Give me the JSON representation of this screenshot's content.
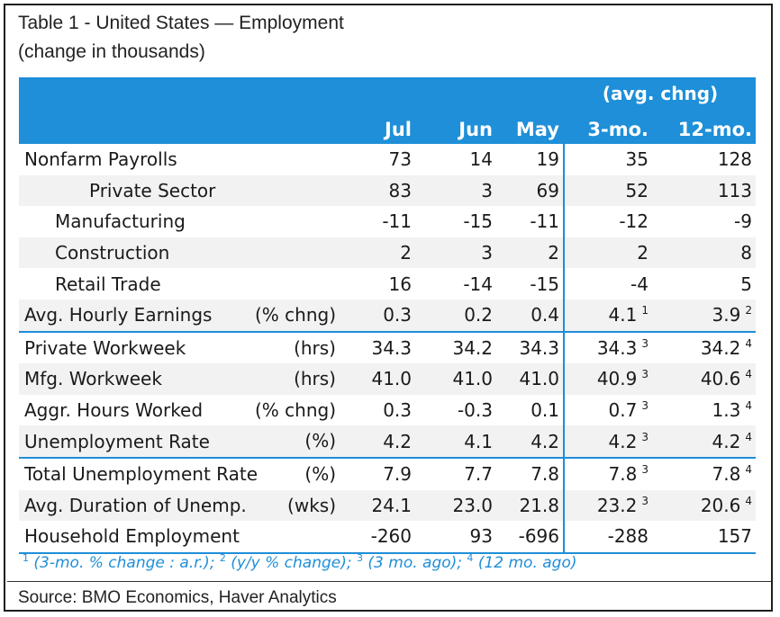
{
  "title": "Table 1 - United States — Employment",
  "subtitle": "(change in thousands)",
  "header": {
    "avg_label": "(avg. chng)",
    "columns": [
      "Jul",
      "Jun",
      "May",
      "3-mo.",
      "12-mo."
    ]
  },
  "rows": [
    {
      "label": "Nonfarm Payrolls",
      "unit": "",
      "values": [
        "73",
        "14",
        "19",
        "35",
        "128"
      ],
      "fn3": "",
      "fn12": ""
    },
    {
      "label": "Private Sector",
      "unit": "",
      "values": [
        "83",
        "3",
        "69",
        "52",
        "113"
      ],
      "fn3": "",
      "fn12": ""
    },
    {
      "label": "Manufacturing",
      "unit": "",
      "values": [
        "-11",
        "-15",
        "-11",
        "-12",
        "-9"
      ],
      "fn3": "",
      "fn12": ""
    },
    {
      "label": "Construction",
      "unit": "",
      "values": [
        "2",
        "3",
        "2",
        "2",
        "8"
      ],
      "fn3": "",
      "fn12": ""
    },
    {
      "label": "Retail Trade",
      "unit": "",
      "values": [
        "16",
        "-14",
        "-15",
        "-4",
        "5"
      ],
      "fn3": "",
      "fn12": ""
    },
    {
      "label": "Avg. Hourly Earnings",
      "unit": "(% chng)",
      "values": [
        "0.3",
        "0.2",
        "0.4",
        "4.1",
        "3.9"
      ],
      "fn3": "1",
      "fn12": "2"
    },
    {
      "label": "Private Workweek",
      "unit": "(hrs)",
      "values": [
        "34.3",
        "34.2",
        "34.3",
        "34.3",
        "34.2"
      ],
      "fn3": "3",
      "fn12": "4"
    },
    {
      "label": "Mfg. Workweek",
      "unit": "(hrs)",
      "values": [
        "41.0",
        "41.0",
        "41.0",
        "40.9",
        "40.6"
      ],
      "fn3": "3",
      "fn12": "4"
    },
    {
      "label": "Aggr. Hours Worked",
      "unit": "(% chng)",
      "values": [
        "0.3",
        "-0.3",
        "0.1",
        "0.7",
        "1.3"
      ],
      "fn3": "3",
      "fn12": "4"
    },
    {
      "label": "Unemployment Rate",
      "unit": "(%)",
      "values": [
        "4.2",
        "4.1",
        "4.2",
        "4.2",
        "4.2"
      ],
      "fn3": "3",
      "fn12": "4"
    },
    {
      "label": "Total Unemployment Rate",
      "unit": "(%)",
      "values": [
        "7.9",
        "7.7",
        "7.8",
        "7.8",
        "7.8"
      ],
      "fn3": "3",
      "fn12": "4"
    },
    {
      "label": "Avg. Duration of Unemp.",
      "unit": "(wks)",
      "values": [
        "24.1",
        "23.0",
        "21.8",
        "23.2",
        "20.6"
      ],
      "fn3": "3",
      "fn12": "4"
    },
    {
      "label": "Household Employment",
      "unit": "",
      "values": [
        "-260",
        "93",
        "-696",
        "-288",
        "157"
      ],
      "fn3": "",
      "fn12": ""
    }
  ],
  "footnotes": {
    "n1": "1",
    "t1": " (3-mo. % change : a.r.); ",
    "n2": "2",
    "t2": " (y/y % change); ",
    "n3": "3",
    "t3": " (3 mo. ago); ",
    "n4": "4",
    "t4": " (12 mo. ago)"
  },
  "source": "Source: BMO Economics, Haver Analytics",
  "colors": {
    "header_blue": "#1e8fd8",
    "row_shade": "#f2f2f2"
  }
}
